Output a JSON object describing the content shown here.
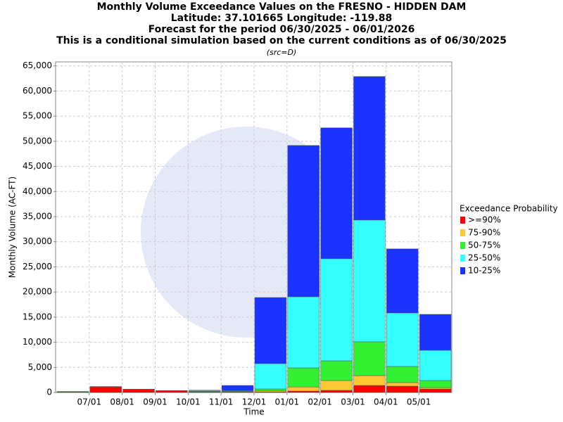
{
  "chart_data": {
    "type": "stacked_bar",
    "title": [
      "Monthly Volume Exceedance Values on the FRESNO - HIDDEN DAM",
      "Latitude: 37.101665 Longitude: -119.88",
      "Forecast for the period 06/30/2025 - 06/01/2026",
      "This is a conditional simulation based on the current conditions as of 06/30/2025"
    ],
    "subtitle": "(src=D)",
    "x_label": "Time",
    "y_label": "Monthly Volume (AC-FT)",
    "legend_title": "Exceedance Probability",
    "legend_position": "right",
    "grid": true,
    "xticks": [
      "07/01",
      "08/01",
      "09/01",
      "10/01",
      "11/01",
      "12/01",
      "01/01",
      "02/01",
      "03/01",
      "04/01",
      "05/01"
    ],
    "ylim": [
      0,
      65800
    ],
    "yticks": [
      0,
      {
        "value": 5000,
        "label": "5,000"
      },
      {
        "value": 10000,
        "label": "10,000"
      },
      {
        "value": 15000,
        "label": "15,000"
      },
      {
        "value": 20000,
        "label": "20,000"
      },
      {
        "value": 25000,
        "label": "25,000"
      },
      {
        "value": 30000,
        "label": "30,000"
      },
      {
        "value": 35000,
        "label": "35,000"
      },
      {
        "value": 40000,
        "label": "40,000"
      },
      {
        "value": 45000,
        "label": "45,000"
      },
      {
        "value": 50000,
        "label": "50,000"
      },
      {
        "value": 55000,
        "label": "55,000"
      },
      {
        "value": 60000,
        "label": "60,000"
      },
      {
        "value": 65000,
        "label": "65,000"
      }
    ],
    "series": [
      {
        "name": ">=90%",
        "color": "#ff0000",
        "values": [
          150,
          1100,
          600,
          350,
          100,
          100,
          100,
          280,
          420,
          1400,
          1260,
          700
        ]
      },
      {
        "name": "75-90%",
        "color": "#ffc832",
        "values": [
          10,
          20,
          10,
          10,
          50,
          100,
          200,
          820,
          1960,
          1960,
          700,
          280
        ]
      },
      {
        "name": "50-75%",
        "color": "#33f033",
        "values": [
          10,
          20,
          10,
          10,
          100,
          100,
          400,
          3800,
          3920,
          6730,
          3220,
          1400
        ]
      },
      {
        "name": "25-50%",
        "color": "#33ffff",
        "values": [
          10,
          20,
          10,
          10,
          150,
          100,
          5040,
          14150,
          20320,
          24230,
          10650,
          6020
        ]
      },
      {
        "name": "10-25%",
        "color": "#1a33ff",
        "values": [
          10,
          20,
          10,
          10,
          50,
          1000,
          13160,
          30120,
          26060,
          28580,
          12750,
          7150
        ]
      }
    ]
  }
}
